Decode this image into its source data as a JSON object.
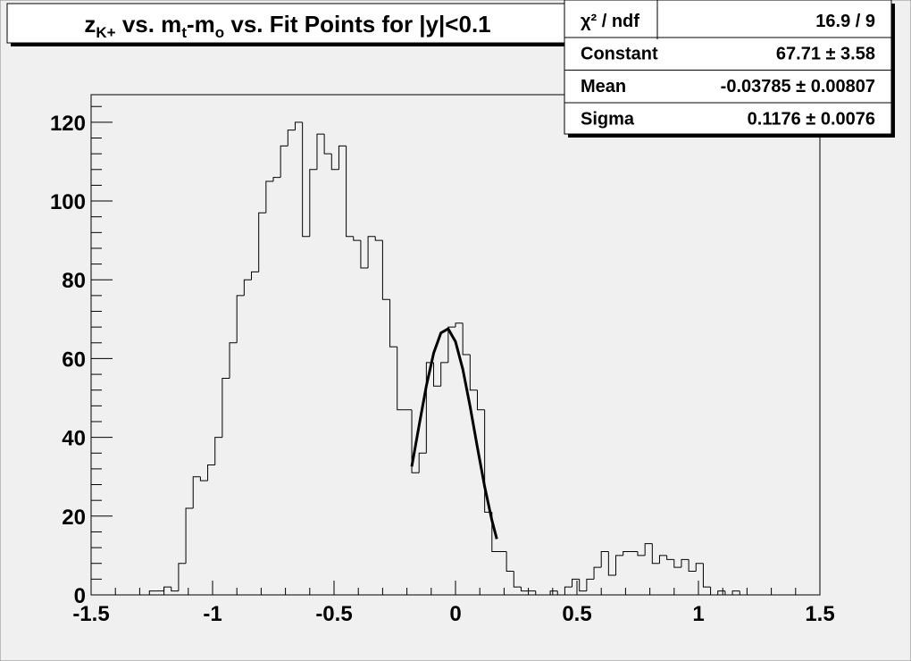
{
  "chart_data": {
    "type": "histogram",
    "title": [
      "z",
      "K+",
      " vs. m",
      "t",
      "-m",
      "o",
      " vs. Fit Points for |y|<0.1"
    ],
    "stats": [
      [
        "χ² / ndf",
        "16.9 / 9"
      ],
      [
        "Constant",
        "67.71 ± 3.58"
      ],
      [
        "Mean",
        "-0.03785 ± 0.00807"
      ],
      [
        "Sigma",
        "0.1176 ± 0.0076"
      ]
    ],
    "bins": [
      -1.5,
      -1.47,
      -1.44,
      -1.41,
      -1.38,
      -1.35,
      -1.32,
      -1.29,
      -1.26,
      -1.23,
      -1.2,
      -1.17,
      -1.14,
      -1.11,
      -1.08,
      -1.05,
      -1.02,
      -0.99,
      -0.96,
      -0.93,
      -0.9,
      -0.87,
      -0.84,
      -0.81,
      -0.78,
      -0.75,
      -0.72,
      -0.69,
      -0.66,
      -0.63,
      -0.6,
      -0.57,
      -0.54,
      -0.51,
      -0.48,
      -0.45,
      -0.42,
      -0.39,
      -0.36,
      -0.33,
      -0.3,
      -0.27,
      -0.24,
      -0.21,
      -0.18,
      -0.15,
      -0.12,
      -0.09,
      -0.06,
      -0.03,
      0,
      0.03,
      0.06,
      0.09,
      0.12,
      0.15,
      0.18,
      0.21,
      0.24,
      0.27,
      0.3,
      0.33,
      0.36,
      0.39,
      0.42,
      0.45,
      0.48,
      0.51,
      0.54,
      0.57,
      0.6,
      0.63,
      0.66,
      0.69,
      0.72,
      0.75,
      0.78,
      0.81,
      0.84,
      0.87,
      0.9,
      0.93,
      0.96,
      0.99,
      1.02,
      1.05,
      1.08,
      1.11,
      1.14,
      1.17,
      1.2,
      1.23,
      1.26,
      1.29,
      1.32,
      1.35,
      1.38,
      1.41,
      1.44,
      1.47,
      1.5
    ],
    "values": [
      0,
      0,
      0,
      0,
      0,
      0,
      0,
      0,
      1,
      1,
      2,
      1,
      8,
      22,
      30,
      29,
      33,
      40,
      55,
      64,
      76,
      80,
      82,
      97,
      105,
      106,
      114,
      118,
      120,
      91,
      108,
      117,
      112,
      108,
      114,
      91,
      90,
      83,
      91,
      90,
      75,
      63,
      47,
      47,
      31,
      36,
      59,
      53,
      59,
      68,
      69,
      61,
      52,
      47,
      21,
      11,
      11,
      6,
      2,
      1,
      1,
      0,
      0,
      1,
      0,
      2,
      4,
      1,
      4,
      7,
      11,
      5,
      10,
      11,
      11,
      10,
      13,
      8,
      10,
      9,
      7,
      9,
      6,
      8,
      2,
      0,
      1,
      0,
      1,
      0,
      0,
      0,
      0,
      0,
      0,
      0,
      0,
      0,
      0,
      0
    ],
    "color": "#000000",
    "fit": {
      "x": [
        -0.18,
        -0.15,
        -0.12,
        -0.09,
        -0.06,
        -0.03,
        0,
        0.03,
        0.06,
        0.09,
        0.12,
        0.15,
        0.17
      ],
      "y": [
        32.6,
        42.97,
        53.05,
        61.37,
        66.52,
        67.56,
        64.29,
        57.32,
        47.9,
        37.5,
        27.5,
        18.9,
        14.2
      ],
      "color": "#000000"
    },
    "xlim": [
      -1.5,
      1.5
    ],
    "xticks": [
      -1.5,
      -1,
      -0.5,
      0,
      0.5,
      1,
      1.5
    ],
    "ylim": [
      0,
      127
    ],
    "yticks": [
      0,
      20,
      40,
      60,
      80,
      100,
      120
    ]
  }
}
